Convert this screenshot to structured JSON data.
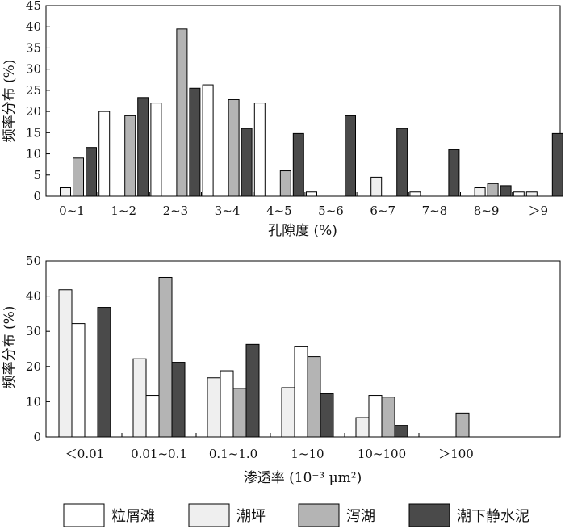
{
  "colors": {
    "粒屑滩": "#ffffff",
    "潮坪": "#efefef",
    "泻湖": "#b4b4b4",
    "潮下静水泥": "#4a4a4a"
  },
  "legend": [
    "粒屑滩",
    "潮坪",
    "泻湖",
    "潮下静水泥"
  ],
  "chart_data": [
    {
      "type": "bar",
      "categories": [
        "0~1",
        "1~2",
        "2~3",
        "3~4",
        "4~5",
        "5~6",
        "6~7",
        "7~8",
        "8~9",
        "＞9"
      ],
      "xlabel": "孔隙度 (%)",
      "ylabel": "频率分布 (%)",
      "ylim": [
        0,
        45
      ],
      "yticks": [
        "0",
        "5",
        "10",
        "15",
        "20",
        "25",
        "30",
        "35",
        "40",
        "45"
      ],
      "series": [
        {
          "name": "粒屑滩",
          "values": [
            0,
            20,
            22,
            26.3,
            22,
            1,
            0,
            1,
            0,
            1
          ]
        },
        {
          "name": "潮坪",
          "values": [
            2,
            0,
            0,
            0,
            0,
            0,
            4.5,
            0,
            2,
            1
          ]
        },
        {
          "name": "泻湖",
          "values": [
            9,
            19,
            39.5,
            22.8,
            6,
            0,
            0,
            0,
            3,
            0
          ]
        },
        {
          "name": "潮下静水泥",
          "values": [
            11.5,
            23.3,
            25.5,
            16,
            14.8,
            19,
            16,
            11,
            2.5,
            14.8
          ]
        }
      ]
    },
    {
      "type": "bar",
      "categories": [
        "＜0.01",
        "0.01~0.1",
        "0.1~1.0",
        "1~10",
        "10~100",
        "＞100"
      ],
      "xlabel": "渗透率 (10⁻³ μm²)",
      "ylabel": "频率分布 (%)",
      "ylim": [
        0,
        50
      ],
      "yticks": [
        "0",
        "10",
        "20",
        "30",
        "40",
        "50"
      ],
      "series": [
        {
          "name": "潮坪",
          "values": [
            41.8,
            22.2,
            16.8,
            14,
            5.5,
            0
          ]
        },
        {
          "name": "粒屑滩",
          "values": [
            32.2,
            11.8,
            18.8,
            25.6,
            11.8,
            0
          ]
        },
        {
          "name": "泻湖",
          "values": [
            0,
            45.3,
            13.8,
            22.8,
            11.3,
            6.8
          ]
        },
        {
          "name": "潮下静水泥",
          "values": [
            36.8,
            21.2,
            26.3,
            12.3,
            3.3,
            0
          ]
        }
      ]
    }
  ]
}
